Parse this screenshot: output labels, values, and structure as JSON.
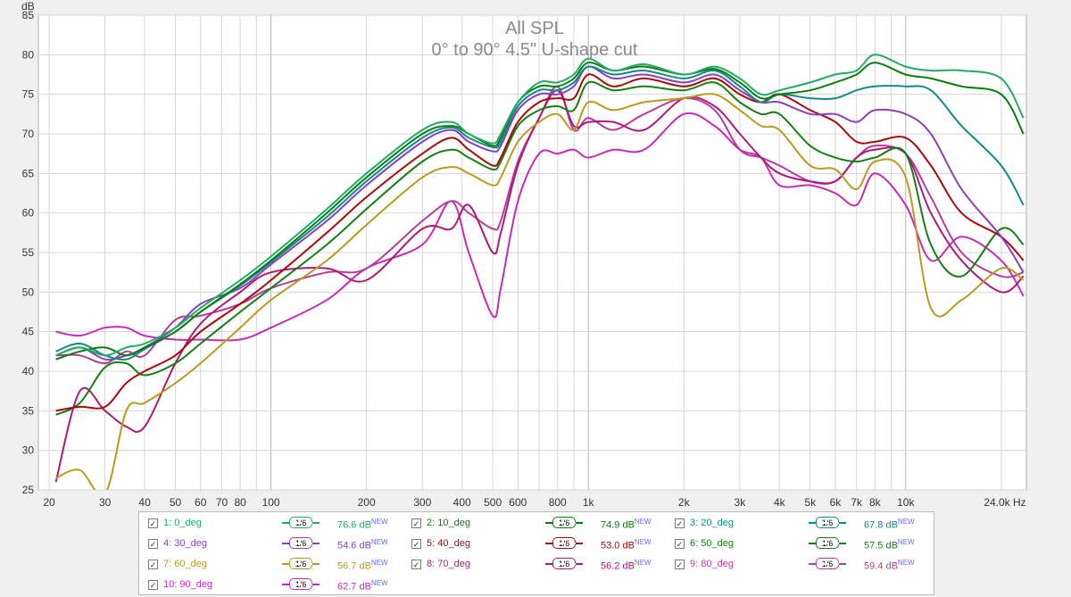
{
  "chart_data": {
    "type": "line",
    "title": "All SPL",
    "subtitle": "0° to 90° 4.5\" U-shape cut",
    "ylabel": "dB",
    "xlabel": "Hz",
    "xscale": "log",
    "xlim": [
      18.5,
      24000
    ],
    "ylim": [
      25,
      85
    ],
    "grid": true,
    "y_ticks": [
      "25",
      "30",
      "35",
      "40",
      "45",
      "50",
      "55",
      "60",
      "65",
      "70",
      "75",
      "80",
      "85"
    ],
    "x_ticks": [
      {
        "v": 20,
        "label": "20"
      },
      {
        "v": 30,
        "label": "30"
      },
      {
        "v": 40,
        "label": "40"
      },
      {
        "v": 50,
        "label": "50"
      },
      {
        "v": 60,
        "label": "60"
      },
      {
        "v": 70,
        "label": "70"
      },
      {
        "v": 80,
        "label": "80"
      },
      {
        "v": 100,
        "label": "100"
      },
      {
        "v": 200,
        "label": "200"
      },
      {
        "v": 300,
        "label": "300"
      },
      {
        "v": 400,
        "label": "400"
      },
      {
        "v": 500,
        "label": "500"
      },
      {
        "v": 600,
        "label": "600"
      },
      {
        "v": 800,
        "label": "800"
      },
      {
        "v": 1000,
        "label": "1k"
      },
      {
        "v": 2000,
        "label": "2k"
      },
      {
        "v": 3000,
        "label": "3k"
      },
      {
        "v": 4000,
        "label": "4k"
      },
      {
        "v": 5000,
        "label": "5k"
      },
      {
        "v": 6000,
        "label": "6k"
      },
      {
        "v": 7000,
        "label": "7k"
      },
      {
        "v": 8000,
        "label": "8k"
      },
      {
        "v": 10000,
        "label": "10k"
      },
      {
        "v": 24000,
        "label": "24.0k Hz"
      }
    ],
    "x": [
      21,
      25,
      30,
      35,
      40,
      50,
      60,
      80,
      100,
      150,
      200,
      300,
      370,
      420,
      500,
      530,
      600,
      700,
      800,
      900,
      1000,
      1200,
      1500,
      2000,
      2500,
      3000,
      3500,
      4000,
      5000,
      6000,
      7000,
      8000,
      10000,
      12000,
      15000,
      20000,
      23500
    ],
    "series": [
      {
        "name": "0_deg",
        "color": "#22aa66",
        "values": [
          42,
          43,
          42,
          43,
          43.5,
          45.5,
          48,
          51.5,
          54.5,
          60.5,
          65,
          70.5,
          71.5,
          70,
          68.8,
          70,
          74,
          76.5,
          76.5,
          77.5,
          79.5,
          78,
          78.8,
          77.5,
          78.5,
          77,
          75,
          75.5,
          76.5,
          77.5,
          78,
          80,
          78.5,
          78,
          78,
          77,
          72
        ]
      },
      {
        "name": "10_deg",
        "color": "#0a7e0a",
        "values": [
          41.5,
          42.5,
          43,
          42,
          43,
          45,
          47.5,
          51,
          54,
          60,
          64.5,
          70,
          71,
          70,
          68.5,
          69.5,
          74,
          76,
          76,
          77,
          79,
          78,
          78.5,
          77.5,
          78.2,
          76.5,
          74.5,
          75,
          75.5,
          76.5,
          77.5,
          79,
          77.5,
          77,
          76,
          75,
          70
        ]
      },
      {
        "name": "20_deg",
        "color": "#118a8a",
        "values": [
          42.5,
          43.5,
          42,
          41.5,
          42.8,
          45,
          47.5,
          50.8,
          53.8,
          59.5,
          64,
          69.5,
          70.8,
          69.5,
          68.3,
          69,
          73.5,
          75.5,
          75.5,
          76.5,
          78.5,
          77.5,
          78,
          77,
          78,
          76,
          74,
          75,
          74.5,
          74.5,
          75.5,
          76,
          76,
          75.5,
          71,
          66,
          61
        ]
      },
      {
        "name": "30_deg",
        "color": "#8b3fbf",
        "values": [
          42,
          43,
          41.5,
          42,
          43,
          45.5,
          48.5,
          50.5,
          53.5,
          59,
          63.5,
          69,
          70.5,
          69,
          67.8,
          68.5,
          73,
          75,
          75,
          76,
          78.5,
          77,
          77.5,
          76.5,
          77.5,
          75.5,
          74,
          74,
          72.5,
          72.5,
          71.5,
          73,
          72.5,
          70,
          63,
          57,
          52.5
        ]
      },
      {
        "name": "40_deg",
        "color": "#a80a0a",
        "values": [
          35,
          35.5,
          35.5,
          38.5,
          40,
          42,
          45,
          48.5,
          51.5,
          57.5,
          62,
          67.5,
          69.5,
          68,
          66,
          67,
          71.5,
          74,
          74.5,
          74.5,
          77.5,
          76,
          77,
          76,
          77,
          75,
          74,
          75,
          73,
          71.5,
          69,
          69,
          69.5,
          66,
          60,
          57,
          54
        ]
      },
      {
        "name": "50_deg",
        "color": "#128012",
        "values": [
          34.5,
          36,
          40.5,
          41,
          39.5,
          41,
          43.5,
          47.5,
          50.5,
          56,
          60.5,
          66.5,
          68,
          67,
          65.5,
          66.5,
          71,
          73,
          73.5,
          73,
          76.5,
          75.5,
          76,
          75.5,
          76.5,
          74,
          72.5,
          72.5,
          68.5,
          67,
          66.5,
          67,
          67.5,
          56,
          52,
          58,
          56
        ]
      },
      {
        "name": "60_deg",
        "color": "#b89b1e",
        "values": [
          26.5,
          27.5,
          24.5,
          35,
          36,
          38.5,
          41,
          45.5,
          49,
          54,
          58.5,
          64.5,
          65.8,
          65,
          63.5,
          64.5,
          69,
          71.5,
          72.5,
          70.5,
          74,
          73,
          74,
          74.5,
          75,
          73,
          71,
          70.5,
          66,
          65.5,
          63,
          66.5,
          64.5,
          48,
          49,
          53,
          51.5
        ]
      },
      {
        "name": "70_deg",
        "color": "#b01878",
        "values": [
          26,
          37.5,
          35,
          33,
          33,
          41,
          46,
          50,
          52.5,
          53,
          51.5,
          58,
          58,
          61,
          55,
          57.5,
          66,
          72,
          75.5,
          71,
          71.5,
          71.5,
          70.5,
          74.5,
          73.5,
          70,
          67,
          65,
          64,
          64,
          67,
          68,
          67.5,
          60,
          54,
          50,
          52
        ]
      },
      {
        "name": "80_deg",
        "color": "#b43c9c",
        "values": [
          42,
          42,
          41,
          42.5,
          42,
          46.5,
          47,
          48.5,
          50.5,
          52.5,
          53,
          59,
          61.5,
          60,
          58,
          59,
          66.5,
          72,
          76,
          70.5,
          72,
          70.5,
          72.5,
          74.5,
          73,
          68,
          67,
          66,
          64,
          64,
          67,
          68.5,
          67.5,
          62,
          55,
          52,
          52.5
        ]
      },
      {
        "name": "90_deg",
        "color": "#c62ab8",
        "values": [
          45,
          44.5,
          45.5,
          45.5,
          44.5,
          44,
          44,
          44,
          45.5,
          49,
          53,
          56,
          61.5,
          55,
          47,
          50.5,
          61.5,
          67.5,
          67.5,
          68,
          67,
          68,
          68,
          72.5,
          71,
          68,
          67,
          63.5,
          63.5,
          62.5,
          61,
          65,
          61,
          54,
          57,
          54,
          49.5
        ]
      }
    ]
  },
  "legend": {
    "items": [
      {
        "idx": "1",
        "name": "0_deg",
        "smooth": "1/6",
        "value": "76.6 dB",
        "flag": "NEW",
        "color": "#22aa66"
      },
      {
        "idx": "2",
        "name": "10_deg",
        "smooth": "1/6",
        "value": "74.9 dB",
        "flag": "NEW",
        "color": "#0a7e0a"
      },
      {
        "idx": "3",
        "name": "20_deg",
        "smooth": "1/6",
        "value": "67.8 dB",
        "flag": "NEW",
        "color": "#118a8a"
      },
      {
        "idx": "4",
        "name": "30_deg",
        "smooth": "1/6",
        "value": "54.6 dB",
        "flag": "NEW",
        "color": "#8b3fbf"
      },
      {
        "idx": "5",
        "name": "40_deg",
        "smooth": "1/6",
        "value": "53.0 dB",
        "flag": "NEW",
        "color": "#a80a0a"
      },
      {
        "idx": "6",
        "name": "50_deg",
        "smooth": "1/6",
        "value": "57.5 dB",
        "flag": "NEW",
        "color": "#128012"
      },
      {
        "idx": "7",
        "name": "60_deg",
        "smooth": "1/6",
        "value": "56.7 dB",
        "flag": "NEW",
        "color": "#b89b1e"
      },
      {
        "idx": "8",
        "name": "70_deg",
        "smooth": "1/6",
        "value": "56.2 dB",
        "flag": "NEW",
        "color": "#b01878"
      },
      {
        "idx": "9",
        "name": "80_deg",
        "smooth": "1/6",
        "value": "59.4 dB",
        "flag": "NEW",
        "color": "#b43c9c"
      },
      {
        "idx": "10",
        "name": "90_deg",
        "smooth": "1/6",
        "value": "62.7 dB",
        "flag": "NEW",
        "color": "#c62ab8"
      }
    ]
  }
}
